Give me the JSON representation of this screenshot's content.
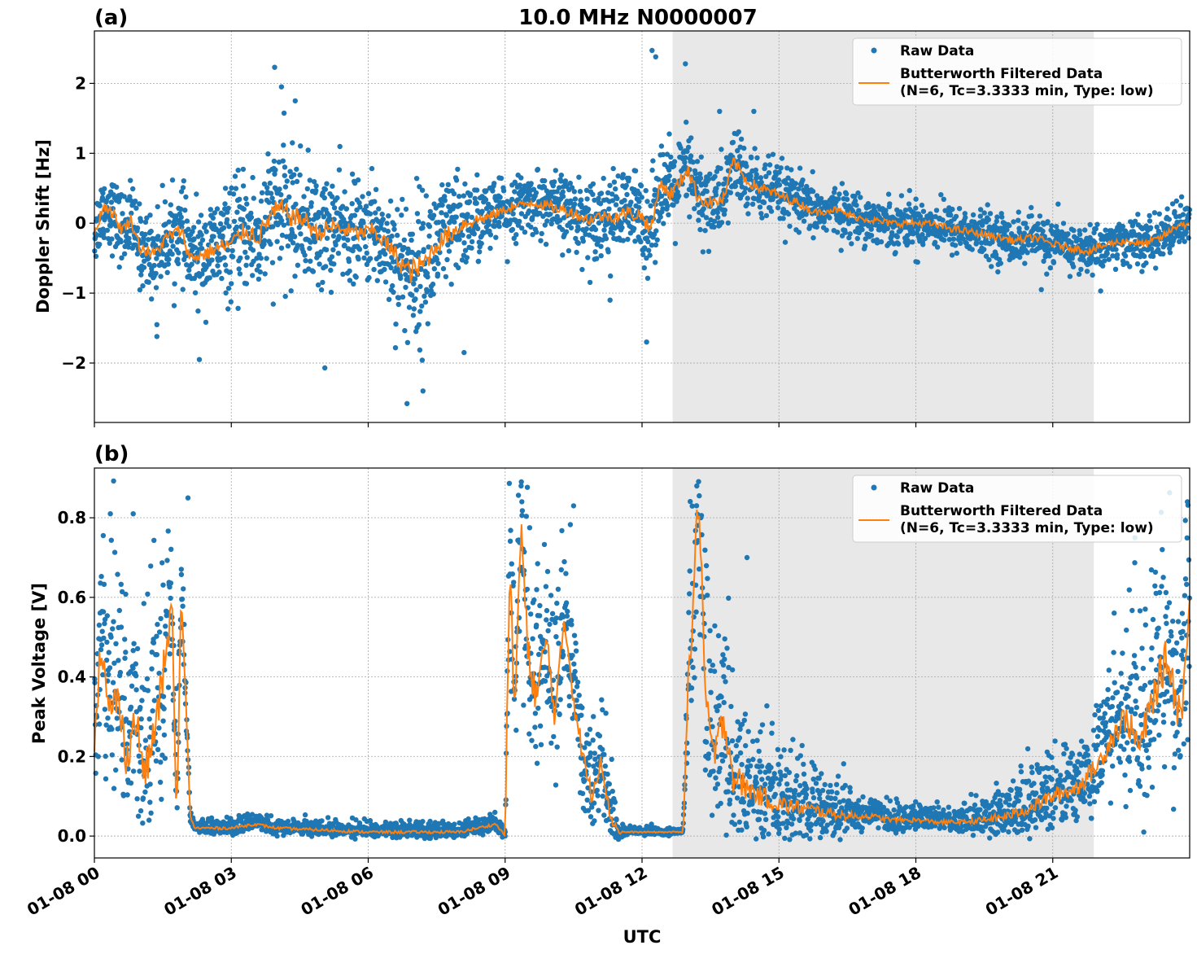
{
  "figure": {
    "title": "10.0 MHz N0000007",
    "xlabel": "UTC",
    "x_tick_labels": [
      "01-08 00",
      "01-08 03",
      "01-08 06",
      "01-08 09",
      "01-08 12",
      "01-08 15",
      "01-08 18",
      "01-08 21"
    ]
  },
  "legend": {
    "raw_label": "Raw Data",
    "filtered_label_line1": "Butterworth Filtered Data",
    "filtered_label_line2": "(N=6, Tc=3.3333 min, Type: low)"
  },
  "colors": {
    "raw": "#1f77b4",
    "filtered": "#ff7f0e",
    "shade": "#e8e8e8",
    "grid": "#b0b0b0"
  },
  "chart_data": [
    {
      "type": "scatter",
      "panel_label": "(a)",
      "title": "10.0 MHz N0000007",
      "xlabel": "",
      "ylabel": "Doppler Shift [Hz]",
      "x_unit": "hours UTC since 01-08 00",
      "xlim": [
        0,
        24
      ],
      "ylim": [
        -2.85,
        2.75
      ],
      "y_ticks": [
        2,
        1,
        0,
        -1,
        -2
      ],
      "y_tick_labels": [
        "2",
        "1",
        "0",
        "−1",
        "−2"
      ],
      "shaded_interval": [
        12.67,
        21.9
      ],
      "grid": true,
      "legend_position": "upper right",
      "series": [
        {
          "name": "Raw Data",
          "kind": "points",
          "spread_approx": [
            [
              0,
              0.45
            ],
            [
              2,
              0.55
            ],
            [
              4,
              0.85
            ],
            [
              6,
              0.6
            ],
            [
              7,
              1.0
            ],
            [
              9,
              0.35
            ],
            [
              12.2,
              0.6
            ],
            [
              13.5,
              0.55
            ],
            [
              16,
              0.3
            ],
            [
              20,
              0.3
            ],
            [
              24,
              0.3
            ]
          ],
          "envelope": {
            "upper_max": 2.45,
            "lower_min": -2.6
          },
          "outliers": [
            [
              1.37,
              -1.62
            ],
            [
              1.37,
              -1.45
            ],
            [
              2.3,
              -1.95
            ],
            [
              3.6,
              -0.8
            ],
            [
              3.95,
              2.23
            ],
            [
              4.4,
              1.75
            ],
            [
              5.05,
              -2.07
            ],
            [
              6.85,
              -2.58
            ],
            [
              7.2,
              -2.4
            ],
            [
              8.1,
              -1.85
            ],
            [
              12.22,
              2.47
            ],
            [
              12.3,
              2.38
            ],
            [
              12.95,
              2.28
            ],
            [
              12.1,
              -1.7
            ],
            [
              13.7,
              1.6
            ],
            [
              14.45,
              1.6
            ],
            [
              18.0,
              -0.55
            ],
            [
              20.75,
              -0.95
            ],
            [
              22.05,
              -0.97
            ],
            [
              11.3,
              -1.1
            ],
            [
              9.05,
              -0.55
            ],
            [
              4.1,
              1.95
            ]
          ]
        },
        {
          "name": "Butterworth Filtered Data (N=6, Tc=3.3333 min, Type: low)",
          "kind": "line",
          "x": [
            0,
            0.2,
            0.4,
            0.6,
            0.8,
            1.0,
            1.3,
            1.6,
            1.9,
            2.1,
            2.4,
            2.7,
            3.0,
            3.3,
            3.6,
            3.9,
            4.1,
            4.3,
            4.6,
            4.9,
            5.2,
            5.5,
            5.8,
            6.1,
            6.4,
            6.7,
            6.9,
            7.2,
            7.5,
            7.8,
            8.1,
            8.4,
            8.7,
            9.0,
            9.3,
            9.6,
            9.9,
            10.2,
            10.5,
            10.8,
            11.1,
            11.4,
            11.7,
            12.0,
            12.2,
            12.4,
            12.6,
            12.8,
            13.0,
            13.2,
            13.4,
            13.6,
            13.8,
            14.0,
            14.3,
            14.6,
            15.0,
            15.4,
            15.8,
            16.2,
            16.6,
            17.0,
            17.4,
            17.8,
            18.2,
            18.6,
            19.0,
            19.4,
            19.8,
            20.2,
            20.6,
            21.0,
            21.4,
            21.8,
            22.2,
            22.6,
            23.0,
            23.4,
            23.8,
            24.0
          ],
          "y": [
            -0.15,
            0.25,
            0.15,
            -0.1,
            0.05,
            -0.35,
            -0.45,
            -0.2,
            -0.1,
            -0.5,
            -0.45,
            -0.35,
            -0.3,
            -0.1,
            -0.2,
            0.15,
            0.2,
            0.1,
            0.05,
            -0.15,
            -0.05,
            -0.1,
            -0.15,
            -0.1,
            -0.3,
            -0.55,
            -0.7,
            -0.6,
            -0.3,
            -0.15,
            0.0,
            0.05,
            0.1,
            0.2,
            0.25,
            0.3,
            0.25,
            0.2,
            0.15,
            0.05,
            0.1,
            0.1,
            0.15,
            0.1,
            -0.1,
            0.6,
            0.4,
            0.55,
            0.8,
            0.4,
            0.3,
            0.3,
            0.35,
            0.9,
            0.6,
            0.5,
            0.4,
            0.3,
            0.15,
            0.2,
            0.1,
            0.05,
            0.0,
            0.0,
            0.0,
            -0.05,
            -0.1,
            -0.15,
            -0.2,
            -0.25,
            -0.2,
            -0.3,
            -0.35,
            -0.4,
            -0.3,
            -0.25,
            -0.3,
            -0.2,
            0.0,
            -0.05
          ]
        }
      ]
    },
    {
      "type": "scatter",
      "panel_label": "(b)",
      "title": "",
      "xlabel": "UTC",
      "ylabel": "Peak Voltage [V]",
      "x_unit": "hours UTC since 01-08 00",
      "xlim": [
        0,
        24
      ],
      "ylim": [
        -0.055,
        0.925
      ],
      "y_ticks": [
        0.8,
        0.6,
        0.4,
        0.2,
        0.0
      ],
      "y_tick_labels": [
        "0.8",
        "0.6",
        "0.4",
        "0.2",
        "0.0"
      ],
      "shaded_interval": [
        12.67,
        21.9
      ],
      "grid": true,
      "legend_position": "upper right",
      "series": [
        {
          "name": "Raw Data",
          "kind": "points",
          "spread_approx": [
            [
              0,
              0.3
            ],
            [
              1.5,
              0.3
            ],
            [
              2.1,
              0.02
            ],
            [
              9.0,
              0.02
            ],
            [
              9.1,
              0.35
            ],
            [
              11.3,
              0.1
            ],
            [
              11.6,
              0.01
            ],
            [
              12.9,
              0.01
            ],
            [
              13.1,
              0.4
            ],
            [
              14.5,
              0.15
            ],
            [
              17,
              0.04
            ],
            [
              19,
              0.03
            ],
            [
              22,
              0.15
            ],
            [
              24,
              0.35
            ]
          ],
          "outliers": [
            [
              0.35,
              0.81
            ],
            [
              0.85,
              0.81
            ],
            [
              2.05,
              0.85
            ],
            [
              9.35,
              0.88
            ],
            [
              10.5,
              0.83
            ],
            [
              13.2,
              0.88
            ],
            [
              14.3,
              0.7
            ],
            [
              23.95,
              0.84
            ],
            [
              22.8,
              0.75
            ],
            [
              23.4,
              0.72
            ]
          ]
        },
        {
          "name": "Butterworth Filtered Data (N=6, Tc=3.3333 min, Type: low)",
          "kind": "line",
          "x": [
            0,
            0.15,
            0.3,
            0.5,
            0.7,
            0.9,
            1.1,
            1.3,
            1.5,
            1.7,
            1.8,
            1.9,
            2.0,
            2.1,
            2.2,
            2.5,
            3.0,
            3.5,
            4.0,
            5.0,
            6.0,
            7.0,
            8.0,
            8.8,
            9.0,
            9.1,
            9.2,
            9.35,
            9.5,
            9.7,
            9.9,
            10.1,
            10.3,
            10.5,
            10.7,
            10.9,
            11.1,
            11.3,
            11.5,
            12.0,
            12.5,
            12.9,
            13.0,
            13.1,
            13.25,
            13.4,
            13.6,
            13.8,
            14.0,
            14.3,
            14.6,
            15.0,
            15.5,
            16.0,
            16.5,
            17.0,
            17.5,
            18.0,
            18.5,
            19.0,
            19.5,
            20.0,
            20.5,
            21.0,
            21.5,
            22.0,
            22.3,
            22.6,
            22.9,
            23.2,
            23.5,
            23.8,
            24.0
          ],
          "y": [
            0.25,
            0.5,
            0.3,
            0.35,
            0.2,
            0.3,
            0.15,
            0.25,
            0.4,
            0.58,
            0.02,
            0.6,
            0.35,
            0.05,
            0.02,
            0.02,
            0.02,
            0.03,
            0.02,
            0.015,
            0.01,
            0.01,
            0.01,
            0.03,
            0.0,
            0.7,
            0.3,
            0.78,
            0.45,
            0.35,
            0.5,
            0.3,
            0.55,
            0.35,
            0.2,
            0.1,
            0.2,
            0.05,
            0.01,
            0.01,
            0.01,
            0.01,
            0.35,
            0.55,
            0.87,
            0.3,
            0.2,
            0.3,
            0.15,
            0.12,
            0.1,
            0.08,
            0.07,
            0.06,
            0.05,
            0.05,
            0.04,
            0.04,
            0.035,
            0.035,
            0.04,
            0.05,
            0.07,
            0.1,
            0.12,
            0.18,
            0.25,
            0.3,
            0.22,
            0.35,
            0.45,
            0.3,
            0.55
          ]
        }
      ]
    }
  ]
}
